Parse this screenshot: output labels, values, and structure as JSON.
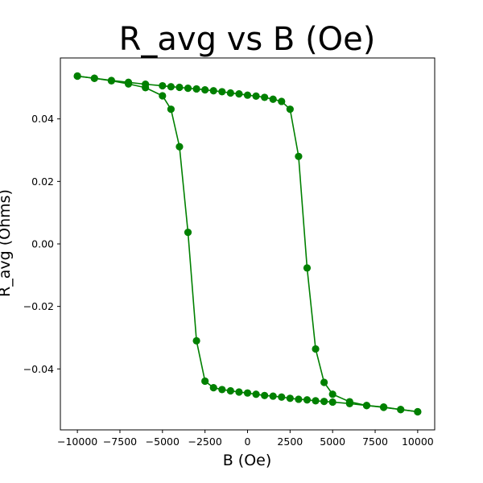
{
  "chart_data": {
    "type": "line",
    "title": "R_avg vs B (Oe)",
    "xlabel": "B (Oe)",
    "ylabel": "R_avg (Ohms)",
    "xlim": [
      -11000,
      11000
    ],
    "ylim": [
      -0.0595,
      0.0595
    ],
    "x_ticks": [
      -10000,
      -7500,
      -5000,
      -2500,
      0,
      2500,
      5000,
      7500,
      10000
    ],
    "x_tick_labels": [
      "−10000",
      "−7500",
      "−5000",
      "−2500",
      "0",
      "2500",
      "5000",
      "7500",
      "10000"
    ],
    "y_ticks": [
      -0.04,
      -0.02,
      0.0,
      0.02,
      0.04
    ],
    "y_tick_labels": [
      "−0.04",
      "−0.02",
      "0.00",
      "0.02",
      "0.04"
    ],
    "grid": false,
    "color": "#008000",
    "marker": "circle",
    "series": [
      {
        "x": [
          -10000,
          -9000,
          -8000,
          -7000,
          -6000,
          -5000,
          -4500,
          -4000,
          -3500,
          -3000,
          -2500,
          -2000,
          -1500,
          -1000,
          -500,
          0,
          500,
          1000,
          1500,
          2000,
          2500,
          3000,
          3500,
          4000,
          4500,
          5000,
          6000,
          7000,
          8000,
          9000,
          10000
        ],
        "y": [
          0.0537,
          0.053,
          0.0522,
          0.0512,
          0.05,
          0.0474,
          0.0431,
          0.0311,
          0.0037,
          -0.031,
          -0.0439,
          -0.046,
          -0.0466,
          -0.047,
          -0.0474,
          -0.0477,
          -0.0481,
          -0.0485,
          -0.0487,
          -0.049,
          -0.0494,
          -0.0497,
          -0.0499,
          -0.0502,
          -0.0504,
          -0.0506,
          -0.0511,
          -0.0517,
          -0.0523,
          -0.053,
          -0.0537
        ]
      },
      {
        "x": [
          10000,
          9000,
          8000,
          7000,
          6000,
          5000,
          4500,
          4000,
          3500,
          3000,
          2500,
          2000,
          1500,
          1000,
          500,
          0,
          -500,
          -1000,
          -1500,
          -2000,
          -2500,
          -3000,
          -3500,
          -4000,
          -4500,
          -5000,
          -6000,
          -7000,
          -8000,
          -9000,
          -10000
        ],
        "y": [
          -0.0537,
          -0.053,
          -0.0522,
          -0.0517,
          -0.0505,
          -0.0481,
          -0.0443,
          -0.0336,
          -0.0077,
          0.028,
          0.0431,
          0.0456,
          0.0463,
          0.0469,
          0.0473,
          0.0476,
          0.048,
          0.0483,
          0.0487,
          0.049,
          0.0493,
          0.0496,
          0.0498,
          0.0501,
          0.0503,
          0.0506,
          0.0511,
          0.0517,
          0.0523,
          0.053,
          0.0537
        ]
      }
    ]
  }
}
